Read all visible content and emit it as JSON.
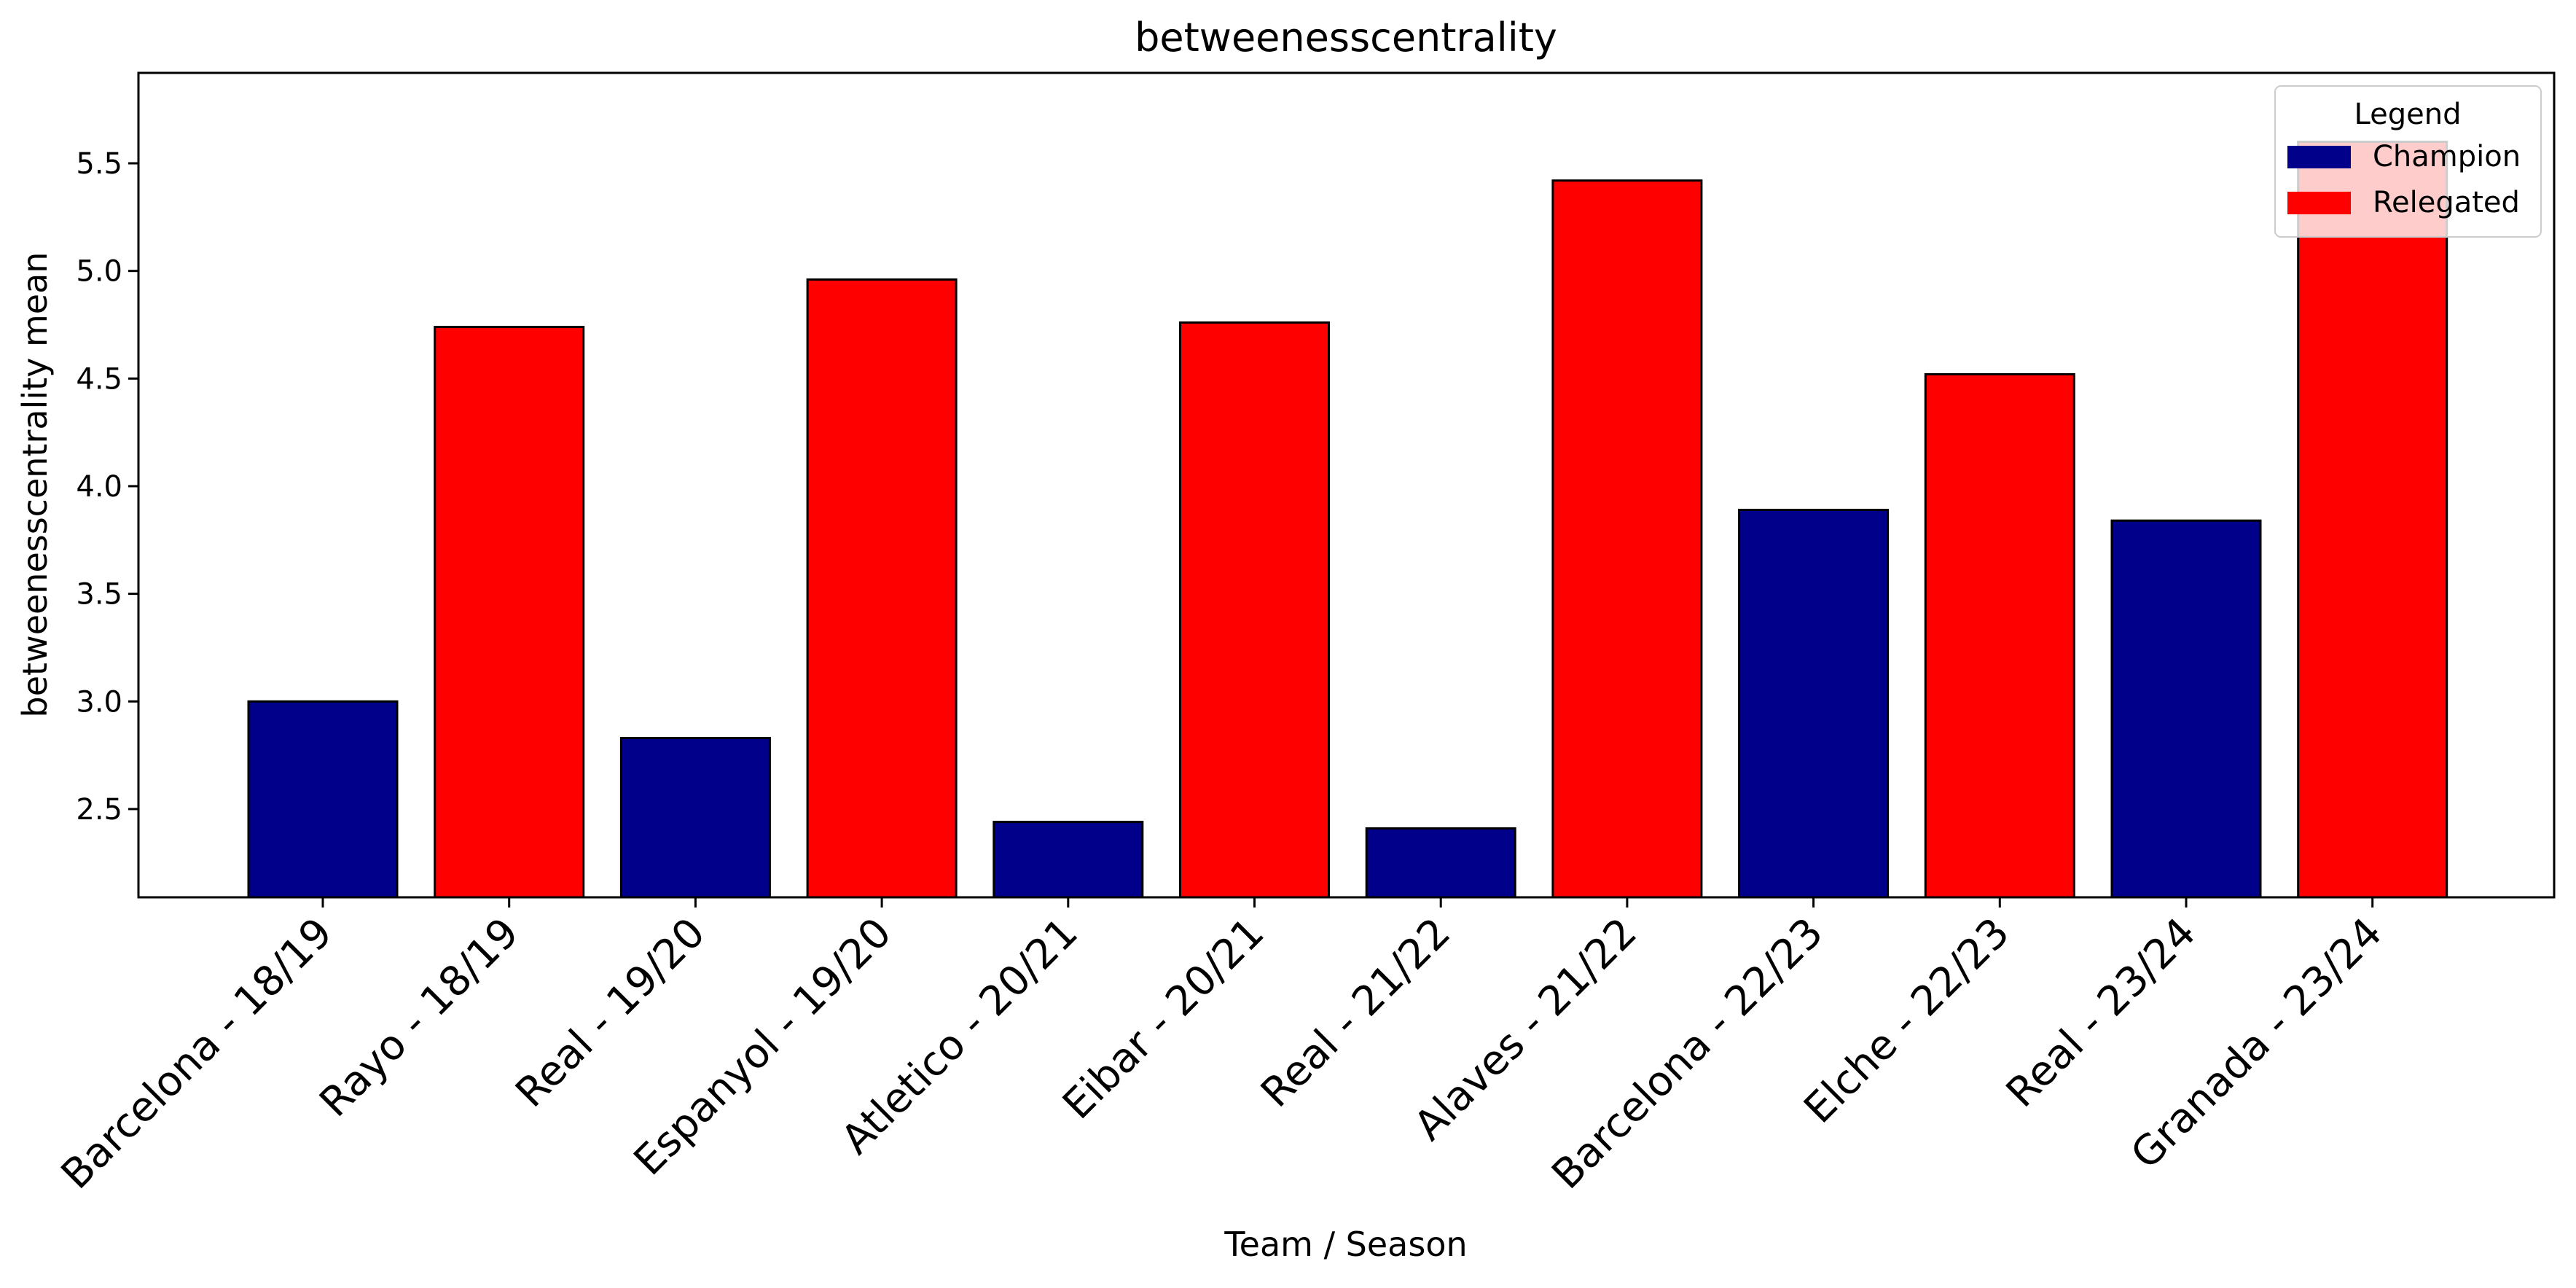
{
  "chart_data": {
    "type": "bar",
    "title": "betweenesscentrality",
    "xlabel": "Team / Season",
    "ylabel": "betweenesscentrality mean",
    "categories": [
      "Barcelona - 18/19",
      "Rayo - 18/19",
      "Real - 19/20",
      "Espanyol - 19/20",
      "Atletico - 20/21",
      "Eibar - 20/21",
      "Real - 21/22",
      "Alaves - 21/22",
      "Barcelona - 22/23",
      "Elche - 22/23",
      "Real - 23/24",
      "Granada - 23/24"
    ],
    "values": [
      3.0,
      4.74,
      2.83,
      4.96,
      2.44,
      4.76,
      2.41,
      5.42,
      3.89,
      4.52,
      3.84,
      5.6
    ],
    "groups": [
      "Champion",
      "Relegated",
      "Champion",
      "Relegated",
      "Champion",
      "Relegated",
      "Champion",
      "Relegated",
      "Champion",
      "Relegated",
      "Champion",
      "Relegated"
    ],
    "colors": {
      "Champion": "#00008b",
      "Relegated": "#ff0000"
    },
    "ylim": [
      2.09,
      5.92
    ],
    "yticks": [
      "2.5",
      "3.0",
      "3.5",
      "4.0",
      "4.5",
      "5.0",
      "5.5"
    ],
    "grid": false,
    "legend": {
      "title": "Legend",
      "position": "top-right",
      "entries": [
        "Champion",
        "Relegated"
      ]
    }
  }
}
